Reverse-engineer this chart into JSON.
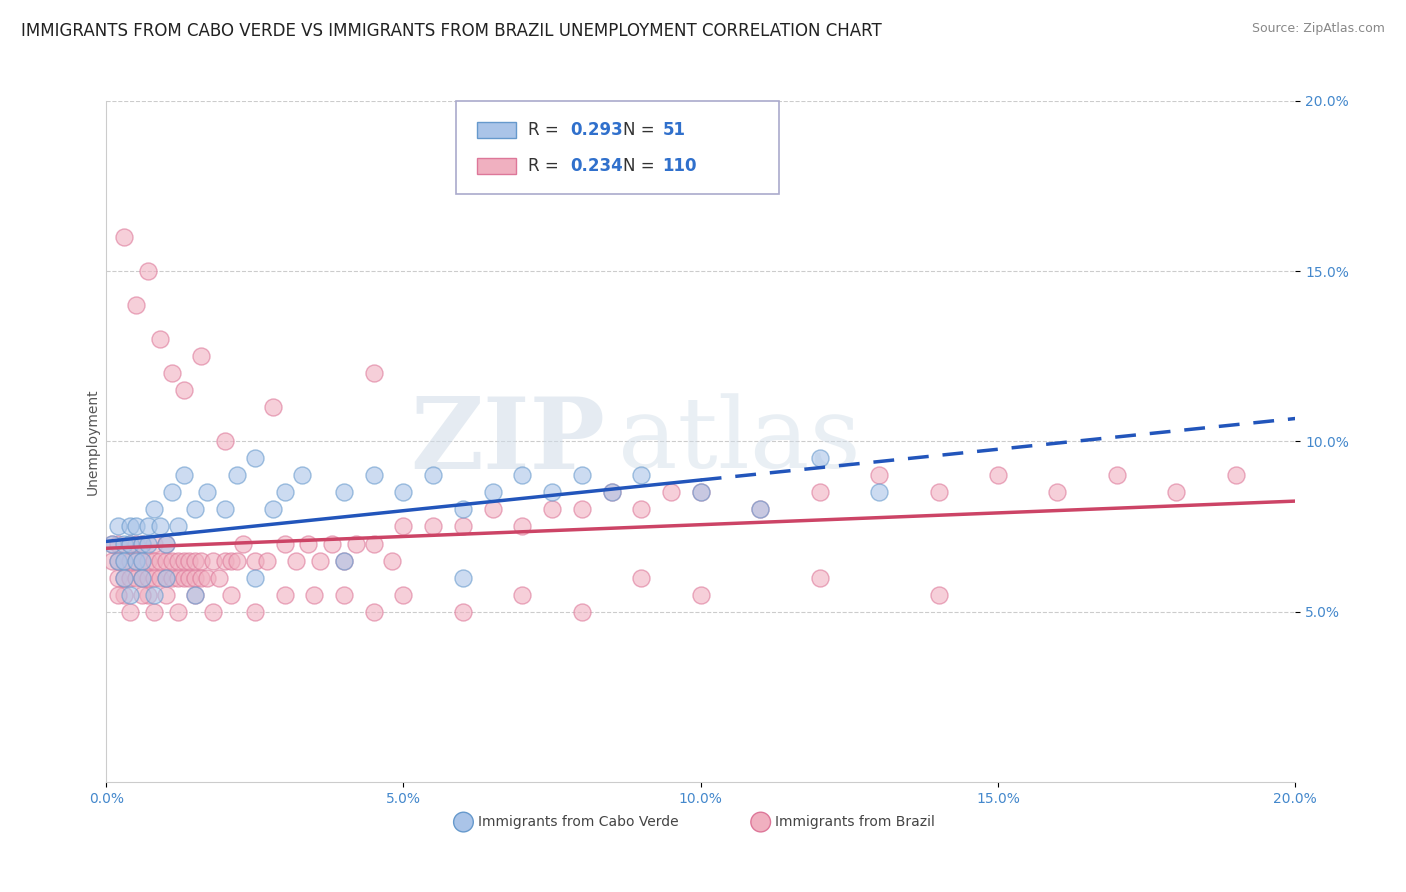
{
  "title": "IMMIGRANTS FROM CABO VERDE VS IMMIGRANTS FROM BRAZIL UNEMPLOYMENT CORRELATION CHART",
  "source": "Source: ZipAtlas.com",
  "ylabel": "Unemployment",
  "xlim": [
    0.0,
    0.2
  ],
  "ylim": [
    0.0,
    0.2
  ],
  "xticks": [
    0.0,
    0.05,
    0.1,
    0.15,
    0.2
  ],
  "yticks": [
    0.05,
    0.1,
    0.15,
    0.2
  ],
  "xticklabels": [
    "0.0%",
    "5.0%",
    "10.0%",
    "15.0%",
    "20.0%"
  ],
  "yticklabels_right": [
    "5.0%",
    "10.0%",
    "15.0%",
    "20.0%"
  ],
  "cabo_verde_color": "#aac4e8",
  "cabo_verde_edge": "#6699cc",
  "brazil_color": "#f0b0c0",
  "brazil_edge": "#dd7799",
  "line_cabo_color": "#2255bb",
  "line_brazil_color": "#cc4466",
  "cabo_verde_R": "0.293",
  "cabo_verde_N": "51",
  "brazil_R": "0.234",
  "brazil_N": "110",
  "watermark_zip": "ZIP",
  "watermark_atlas": "atlas",
  "background_color": "#ffffff",
  "title_fontsize": 12,
  "source_fontsize": 9,
  "axis_label_fontsize": 10,
  "tick_fontsize": 10,
  "legend_label_cabo": "Immigrants from Cabo Verde",
  "legend_label_brazil": "Immigrants from Brazil",
  "legend_text_color": "#333333",
  "legend_value_color": "#3070cc",
  "tick_color": "#4488cc",
  "grid_color": "#cccccc",
  "cabo_verde_x": [
    0.001,
    0.002,
    0.002,
    0.003,
    0.003,
    0.004,
    0.004,
    0.005,
    0.005,
    0.006,
    0.006,
    0.007,
    0.007,
    0.008,
    0.009,
    0.01,
    0.011,
    0.012,
    0.013,
    0.015,
    0.017,
    0.02,
    0.022,
    0.025,
    0.028,
    0.03,
    0.033,
    0.04,
    0.045,
    0.05,
    0.055,
    0.06,
    0.065,
    0.07,
    0.075,
    0.08,
    0.085,
    0.09,
    0.1,
    0.11,
    0.12,
    0.13,
    0.003,
    0.004,
    0.006,
    0.008,
    0.01,
    0.015,
    0.025,
    0.04,
    0.06
  ],
  "cabo_verde_y": [
    0.07,
    0.075,
    0.065,
    0.07,
    0.065,
    0.075,
    0.07,
    0.065,
    0.075,
    0.07,
    0.065,
    0.075,
    0.07,
    0.08,
    0.075,
    0.07,
    0.085,
    0.075,
    0.09,
    0.08,
    0.085,
    0.08,
    0.09,
    0.095,
    0.08,
    0.085,
    0.09,
    0.085,
    0.09,
    0.085,
    0.09,
    0.08,
    0.085,
    0.09,
    0.085,
    0.09,
    0.085,
    0.09,
    0.085,
    0.08,
    0.095,
    0.085,
    0.06,
    0.055,
    0.06,
    0.055,
    0.06,
    0.055,
    0.06,
    0.065,
    0.06
  ],
  "brazil_x": [
    0.001,
    0.001,
    0.002,
    0.002,
    0.002,
    0.003,
    0.003,
    0.003,
    0.004,
    0.004,
    0.004,
    0.005,
    0.005,
    0.005,
    0.006,
    0.006,
    0.006,
    0.007,
    0.007,
    0.007,
    0.008,
    0.008,
    0.008,
    0.009,
    0.009,
    0.01,
    0.01,
    0.01,
    0.011,
    0.011,
    0.012,
    0.012,
    0.013,
    0.013,
    0.014,
    0.014,
    0.015,
    0.015,
    0.016,
    0.016,
    0.017,
    0.018,
    0.019,
    0.02,
    0.021,
    0.022,
    0.023,
    0.025,
    0.027,
    0.03,
    0.032,
    0.034,
    0.036,
    0.038,
    0.04,
    0.042,
    0.045,
    0.048,
    0.05,
    0.055,
    0.06,
    0.065,
    0.07,
    0.075,
    0.08,
    0.085,
    0.09,
    0.095,
    0.1,
    0.11,
    0.12,
    0.13,
    0.14,
    0.15,
    0.16,
    0.17,
    0.18,
    0.19,
    0.002,
    0.004,
    0.006,
    0.008,
    0.01,
    0.012,
    0.015,
    0.018,
    0.021,
    0.025,
    0.03,
    0.035,
    0.04,
    0.045,
    0.05,
    0.06,
    0.07,
    0.08,
    0.09,
    0.1,
    0.12,
    0.14,
    0.003,
    0.005,
    0.007,
    0.009,
    0.011,
    0.013,
    0.016,
    0.02,
    0.028,
    0.045
  ],
  "brazil_y": [
    0.065,
    0.07,
    0.06,
    0.065,
    0.07,
    0.055,
    0.06,
    0.065,
    0.06,
    0.065,
    0.07,
    0.06,
    0.065,
    0.07,
    0.06,
    0.065,
    0.07,
    0.055,
    0.06,
    0.065,
    0.06,
    0.065,
    0.07,
    0.06,
    0.065,
    0.06,
    0.065,
    0.07,
    0.06,
    0.065,
    0.06,
    0.065,
    0.06,
    0.065,
    0.06,
    0.065,
    0.06,
    0.065,
    0.06,
    0.065,
    0.06,
    0.065,
    0.06,
    0.065,
    0.065,
    0.065,
    0.07,
    0.065,
    0.065,
    0.07,
    0.065,
    0.07,
    0.065,
    0.07,
    0.065,
    0.07,
    0.07,
    0.065,
    0.075,
    0.075,
    0.075,
    0.08,
    0.075,
    0.08,
    0.08,
    0.085,
    0.08,
    0.085,
    0.085,
    0.08,
    0.085,
    0.09,
    0.085,
    0.09,
    0.085,
    0.09,
    0.085,
    0.09,
    0.055,
    0.05,
    0.055,
    0.05,
    0.055,
    0.05,
    0.055,
    0.05,
    0.055,
    0.05,
    0.055,
    0.055,
    0.055,
    0.05,
    0.055,
    0.05,
    0.055,
    0.05,
    0.06,
    0.055,
    0.06,
    0.055,
    0.16,
    0.14,
    0.15,
    0.13,
    0.12,
    0.115,
    0.125,
    0.1,
    0.11,
    0.12
  ]
}
